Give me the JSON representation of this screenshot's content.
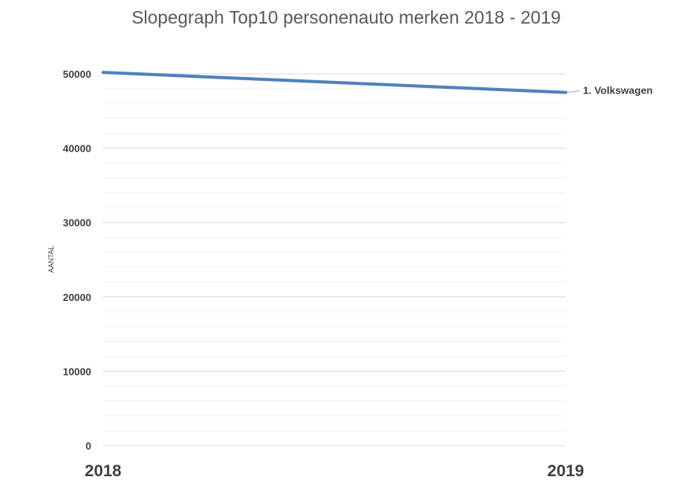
{
  "chart_data": {
    "type": "line",
    "title": "Slopegraph Top10 personenauto merken 2018 - 2019",
    "xlabel": "",
    "ylabel": "AANTAL",
    "categories": [
      "2018",
      "2019"
    ],
    "ylim": [
      0,
      50000
    ],
    "yticks": [
      "0",
      "10000",
      "20000",
      "30000",
      "40000",
      "50000"
    ],
    "grid": true,
    "legend": "none",
    "series": [
      {
        "name": "1. Volkswagen",
        "values": [
          50200,
          47500
        ],
        "color": "#4F81BD"
      }
    ]
  }
}
